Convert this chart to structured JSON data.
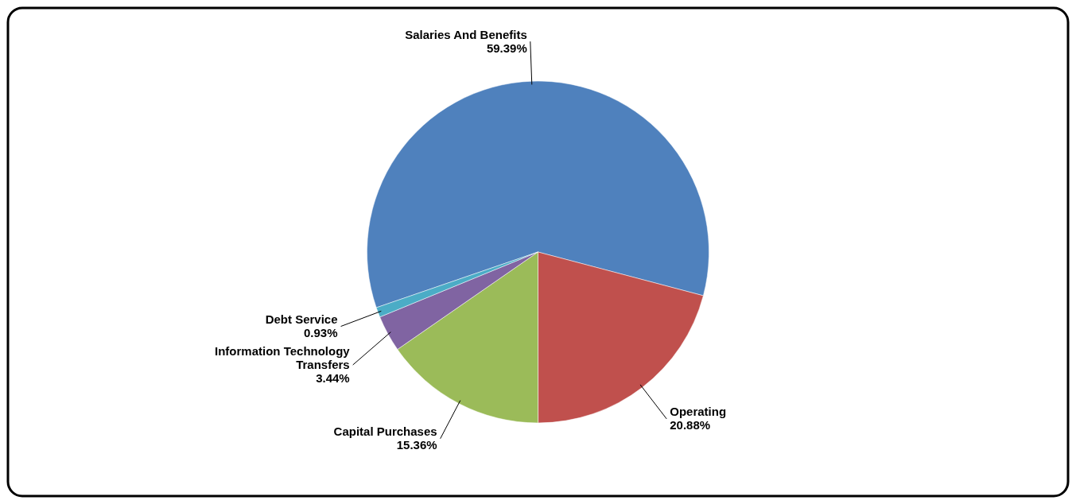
{
  "chart_data": {
    "type": "pie",
    "categories": [
      "Salaries And Benefits",
      "Operating",
      "Capital Purchases",
      "Information Technology Transfers",
      "Debt Service"
    ],
    "values": [
      59.39,
      20.88,
      15.36,
      3.44,
      0.93
    ],
    "value_labels": [
      "59.39%",
      "20.88%",
      "15.36%",
      "3.44%",
      "0.93%"
    ],
    "colors": [
      "#4f81bd",
      "#c0504d",
      "#9bbb59",
      "#8064a2",
      "#4bacc6"
    ]
  }
}
